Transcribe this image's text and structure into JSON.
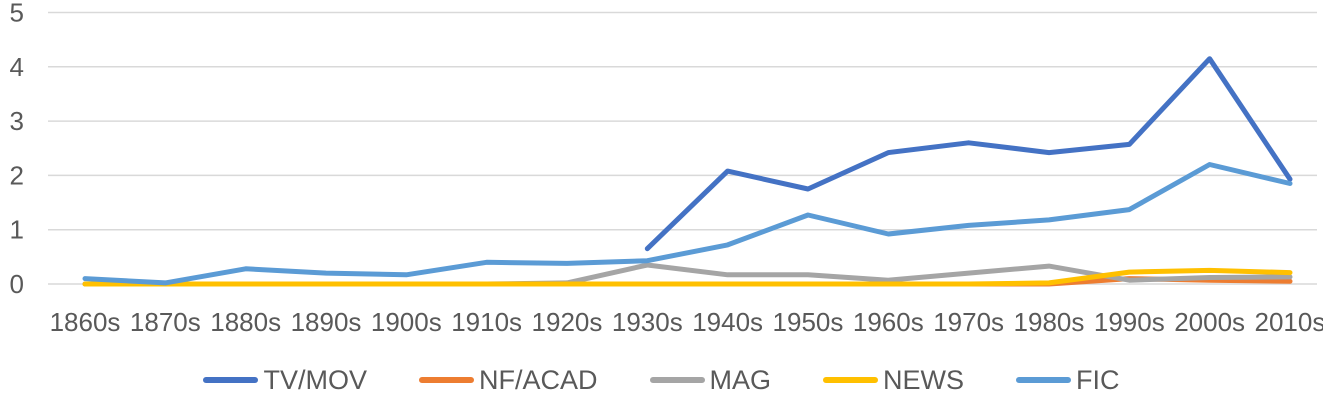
{
  "chart_data": {
    "type": "line",
    "title": "",
    "xlabel": "",
    "ylabel": "",
    "categories": [
      "1860s",
      "1870s",
      "1880s",
      "1890s",
      "1900s",
      "1910s",
      "1920s",
      "1930s",
      "1940s",
      "1950s",
      "1960s",
      "1970s",
      "1980s",
      "1990s",
      "2000s",
      "2010s"
    ],
    "series": [
      {
        "name": "TV/MOV",
        "color": "#4472C4",
        "values": [
          null,
          null,
          null,
          null,
          null,
          null,
          null,
          0.65,
          2.08,
          1.75,
          2.42,
          2.6,
          2.42,
          2.57,
          4.15,
          1.93
        ]
      },
      {
        "name": "NF/ACAD",
        "color": "#ED7D31",
        "values": [
          0,
          0,
          0,
          0,
          0,
          0,
          0,
          0,
          0,
          0,
          0,
          0,
          0,
          0.1,
          0.07,
          0.05
        ]
      },
      {
        "name": "MAG",
        "color": "#A5A5A5",
        "values": [
          0,
          0,
          0,
          0,
          0,
          0,
          0.02,
          0.35,
          0.17,
          0.17,
          0.07,
          0.2,
          0.33,
          0.07,
          0.12,
          0.13
        ]
      },
      {
        "name": "NEWS",
        "color": "#FFC000",
        "values": [
          0,
          0,
          0,
          0,
          0,
          0,
          0,
          0,
          0,
          0,
          0,
          0,
          0.02,
          0.22,
          0.25,
          0.21
        ]
      },
      {
        "name": "FIC",
        "color": "#5B9BD5",
        "values": [
          0.1,
          0.02,
          0.28,
          0.2,
          0.17,
          0.4,
          0.38,
          0.43,
          0.72,
          1.27,
          0.92,
          1.08,
          1.18,
          1.37,
          2.2,
          1.85
        ]
      }
    ],
    "y_ticks": [
      0,
      1,
      2,
      3,
      4,
      5
    ],
    "ylim": [
      0,
      5
    ],
    "grid": "horizontal-gridlines-on",
    "legend_position": "bottom",
    "gridline_color": "#D9D9D9",
    "axis_label_color": "#595959",
    "line_width": 5
  }
}
